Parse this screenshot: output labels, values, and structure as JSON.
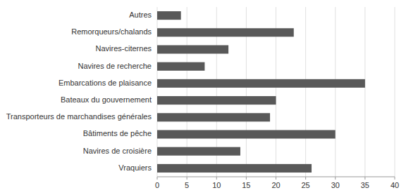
{
  "chart_data": {
    "type": "bar",
    "orientation": "horizontal",
    "categories": [
      "Autres",
      "Remorqueurs/chalands",
      "Navires-citernes",
      "Navires de recherche",
      "Embarcations de plaisance",
      "Bateaux du gouvernement",
      "Transporteurs de marchandises générales",
      "Bâtiments de pêche",
      "Navires de croisière",
      "Vraquiers"
    ],
    "values": [
      4,
      23,
      12,
      8,
      35,
      20,
      19,
      30,
      14,
      26
    ],
    "color": "#595959",
    "xlim": [
      0,
      40
    ],
    "xticks": [
      0,
      5,
      10,
      15,
      20,
      25,
      30,
      35,
      40
    ],
    "grid": true
  }
}
